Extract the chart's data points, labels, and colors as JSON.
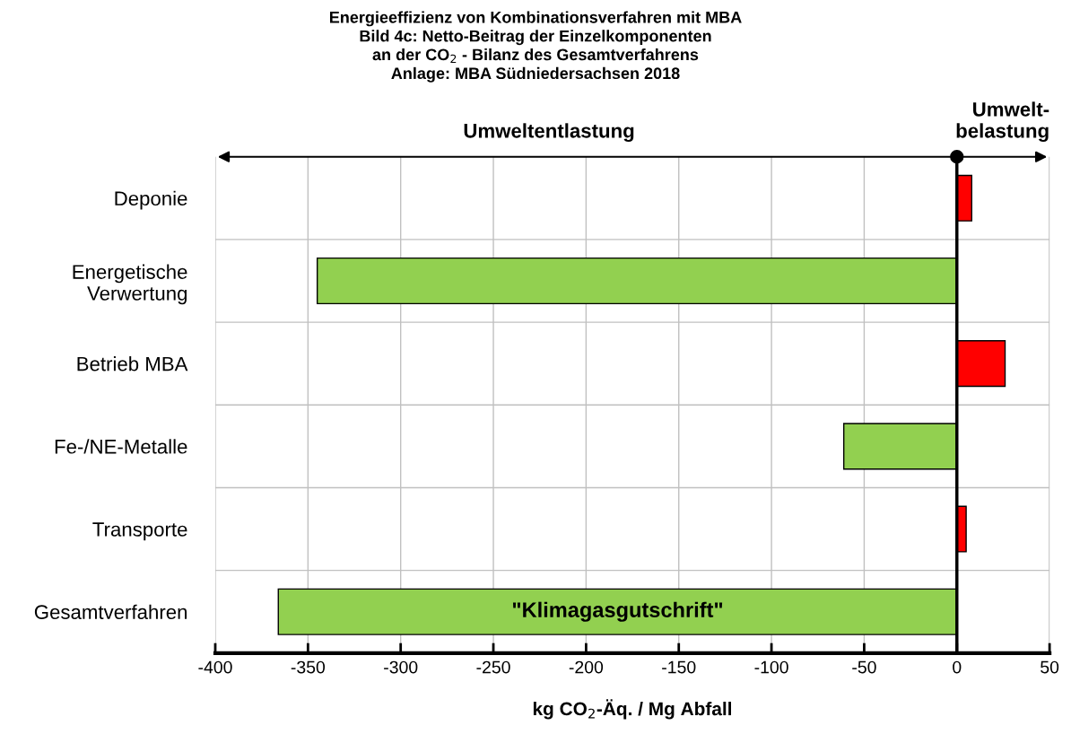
{
  "chart_data": {
    "type": "bar",
    "orientation": "horizontal",
    "title": "Energieeffizienz von Kombinationsverfahren mit MBA\nBild 4c: Netto-Beitrag der Einzelkomponenten\nan der CO$_{2}$ - Bilanz des Gesamtverfahrens\nAnlage: MBA Südniedersachsen 2018",
    "xlabel": "kg CO$_{2}$-Äq. / Mg Abfall",
    "categories": [
      "Deponie",
      "Energetische\nVerwertung",
      "Betrieb MBA",
      "Fe-/NE-Metalle",
      "Transporte",
      "Gesamtverfahren"
    ],
    "values": [
      8,
      -345,
      26,
      -61,
      5,
      -366
    ],
    "colors": [
      "#ff0000",
      "#92d050",
      "#ff0000",
      "#92d050",
      "#ff0000",
      "#92d050"
    ],
    "xlim": [
      -400,
      50
    ],
    "xticks": [
      -400,
      -350,
      -300,
      -250,
      -200,
      -150,
      -100,
      -50,
      0,
      50
    ],
    "grid": true,
    "ref_lines": [
      {
        "axis": "x",
        "value": 0,
        "color": "#000000"
      }
    ],
    "annotations": [
      "Umweltentlastung",
      "Umwelt-\nbelastung",
      "\"Klimagasgutschrift\""
    ]
  }
}
